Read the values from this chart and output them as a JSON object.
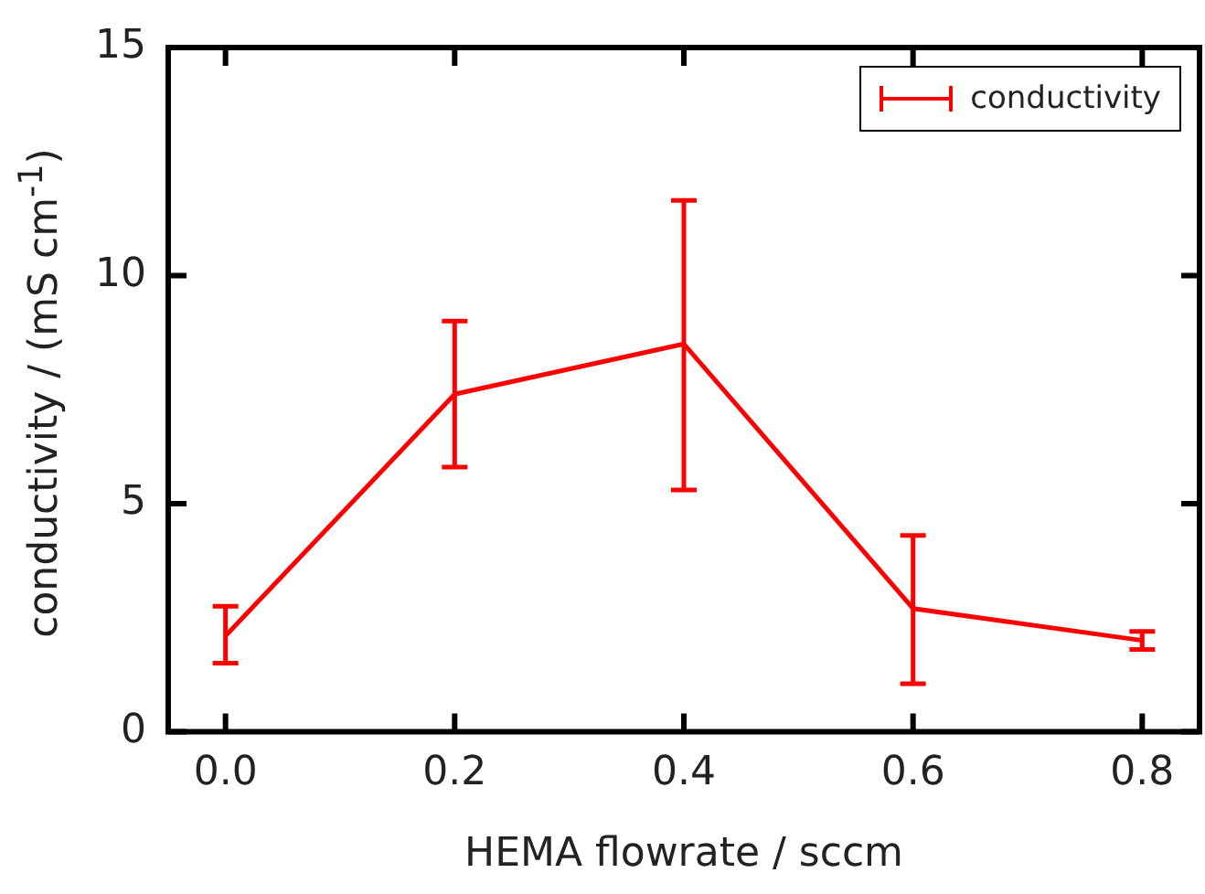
{
  "chart_data": {
    "type": "line",
    "xlabel": "HEMA flowrate / sccm",
    "ylabel": "conductivity / (mS cm$^{-1}$)",
    "x": [
      0,
      0.2,
      0.4,
      0.6,
      0.8
    ],
    "series": [
      {
        "name": "conductivity",
        "color": "#ff0000",
        "values": [
          2.1,
          7.4,
          8.5,
          2.7,
          2.0
        ],
        "errors": [
          [
            1.5,
            2.75
          ],
          [
            5.8,
            9.0
          ],
          [
            5.3,
            11.65
          ],
          [
            1.05,
            4.3
          ],
          [
            1.8,
            2.2
          ]
        ]
      }
    ],
    "xlim": [
      -0.05,
      0.85
    ],
    "xticks": [
      {
        "value": 0,
        "label": "0.0"
      },
      0.2,
      0.4,
      0.6,
      0.8
    ],
    "ylim": [
      0,
      15
    ],
    "yticks": [
      0,
      5,
      10,
      15
    ],
    "grid": false,
    "legend": "top right",
    "marker": "none",
    "line_style": "solid"
  }
}
